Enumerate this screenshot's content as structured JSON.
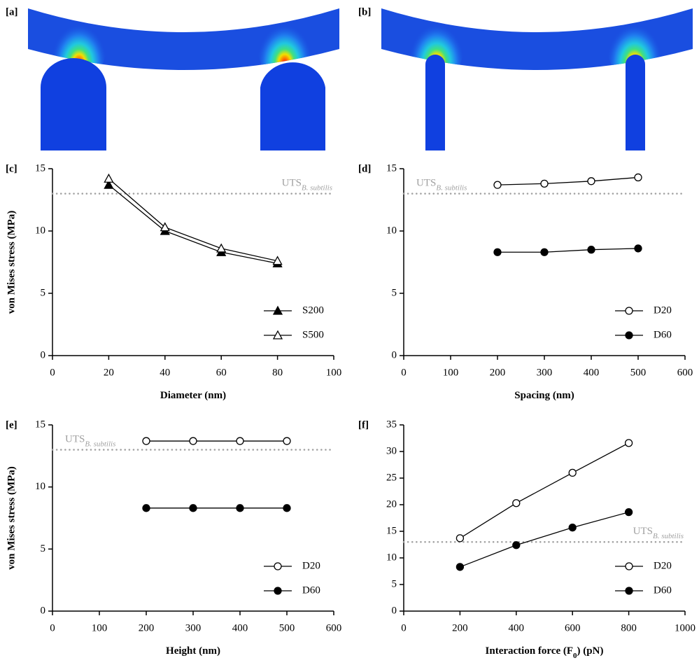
{
  "images": [
    {
      "label": "[a]"
    },
    {
      "label": "[b]"
    }
  ],
  "chart_data": [
    {
      "type": "line",
      "panel_label": "[c]",
      "y_label": "von Mises stress (MPa)",
      "x_label": [
        "Diameter (nm)"
      ],
      "x": [
        20,
        40,
        60,
        80
      ],
      "xlim": [
        0,
        100
      ],
      "xticks": [
        0,
        20,
        40,
        60,
        80,
        100
      ],
      "ylim": [
        0,
        15
      ],
      "yticks": [
        0,
        5,
        10,
        15
      ],
      "ref_line": {
        "value": 13,
        "label": "UTS",
        "subscript": "B. subtilis",
        "color": "#a0a0a0"
      },
      "legend": "lower right",
      "series": [
        {
          "name": "S200",
          "marker": "triangle",
          "filled": true,
          "color": "#000000",
          "values": [
            13.7,
            10.0,
            8.3,
            7.4
          ]
        },
        {
          "name": "S500",
          "marker": "triangle",
          "filled": false,
          "color": "#000000",
          "values": [
            14.2,
            10.3,
            8.6,
            7.6
          ]
        }
      ]
    },
    {
      "type": "line",
      "panel_label": "[d]",
      "x_label": [
        "Spacing (nm)"
      ],
      "x": [
        200,
        300,
        400,
        500
      ],
      "xlim": [
        0,
        600
      ],
      "xticks": [
        0,
        100,
        200,
        300,
        400,
        500,
        600
      ],
      "ylim": [
        0,
        15
      ],
      "yticks": [
        0,
        5,
        10,
        15
      ],
      "ref_line": {
        "value": 13,
        "label": "UTS",
        "subscript": "B. subtilis",
        "color": "#a0a0a0"
      },
      "legend": "lower right",
      "series": [
        {
          "name": "D20",
          "marker": "circle",
          "filled": false,
          "color": "#000000",
          "values": [
            13.7,
            13.8,
            14.0,
            14.3
          ]
        },
        {
          "name": "D60",
          "marker": "circle",
          "filled": true,
          "color": "#000000",
          "values": [
            8.3,
            8.3,
            8.5,
            8.6
          ]
        }
      ]
    },
    {
      "type": "line",
      "panel_label": "[e]",
      "y_label": "von Mises stress (MPa)",
      "x_label": [
        "Height (nm)"
      ],
      "x": [
        200,
        300,
        400,
        500
      ],
      "xlim": [
        0,
        600
      ],
      "xticks": [
        0,
        100,
        200,
        300,
        400,
        500,
        600
      ],
      "ylim": [
        0,
        15
      ],
      "yticks": [
        0,
        5,
        10,
        15
      ],
      "ref_line": {
        "value": 13,
        "label": "UTS",
        "subscript": "B. subtilis",
        "color": "#a0a0a0"
      },
      "legend": "lower right",
      "series": [
        {
          "name": "D20",
          "marker": "circle",
          "filled": false,
          "color": "#000000",
          "values": [
            13.7,
            13.7,
            13.7,
            13.7
          ]
        },
        {
          "name": "D60",
          "marker": "circle",
          "filled": true,
          "color": "#000000",
          "values": [
            8.3,
            8.3,
            8.3,
            8.3
          ]
        }
      ]
    },
    {
      "type": "line",
      "panel_label": "[f]",
      "x_label": [
        "Interaction force (F",
        "0",
        ") (pN)"
      ],
      "x": [
        200,
        400,
        600,
        800
      ],
      "xlim": [
        0,
        1000
      ],
      "xticks": [
        0,
        200,
        400,
        600,
        800,
        1000
      ],
      "ylim": [
        0,
        35
      ],
      "yticks": [
        0,
        5,
        10,
        15,
        20,
        25,
        30,
        35
      ],
      "ref_line": {
        "value": 13,
        "label": "UTS",
        "subscript": "B. subtilis",
        "color": "#a0a0a0"
      },
      "legend": "lower right",
      "series": [
        {
          "name": "D20",
          "marker": "circle",
          "filled": false,
          "color": "#000000",
          "values": [
            13.7,
            20.3,
            26.0,
            31.6
          ]
        },
        {
          "name": "D60",
          "marker": "circle",
          "filled": true,
          "color": "#000000",
          "values": [
            8.3,
            12.4,
            15.7,
            18.6
          ]
        }
      ]
    }
  ]
}
